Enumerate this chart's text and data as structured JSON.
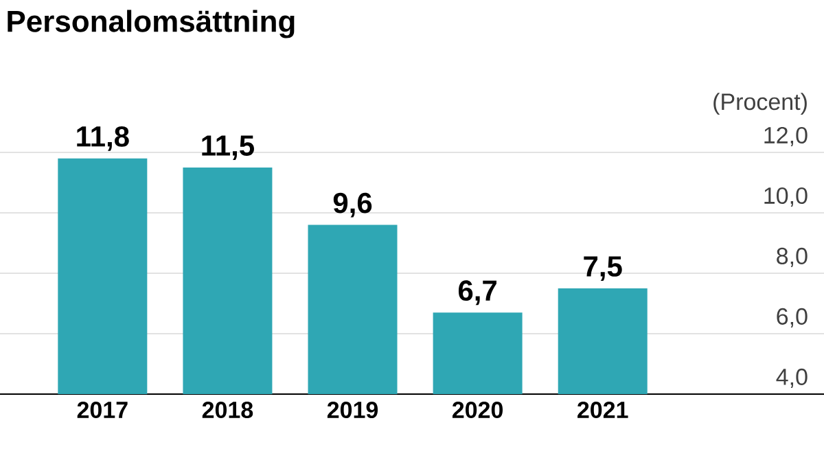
{
  "chart_data": {
    "type": "bar",
    "title": "Personalomsättning",
    "ylabel": "(Procent)",
    "categories": [
      "2017",
      "2018",
      "2019",
      "2020",
      "2021"
    ],
    "values": [
      11.8,
      11.5,
      9.6,
      6.7,
      7.5
    ],
    "value_labels": [
      "11,8",
      "11,5",
      "9,6",
      "6,7",
      "7,5"
    ],
    "color": "#2fa7b4",
    "ylim": [
      4,
      12
    ],
    "yticks": [
      {
        "value": 4,
        "label": "4,0"
      },
      {
        "value": 6,
        "label": "6,0"
      },
      {
        "value": 8,
        "label": "8,0"
      },
      {
        "value": 10,
        "label": "10,0"
      },
      {
        "value": 12,
        "label": "12,0"
      }
    ],
    "grid": "y"
  }
}
